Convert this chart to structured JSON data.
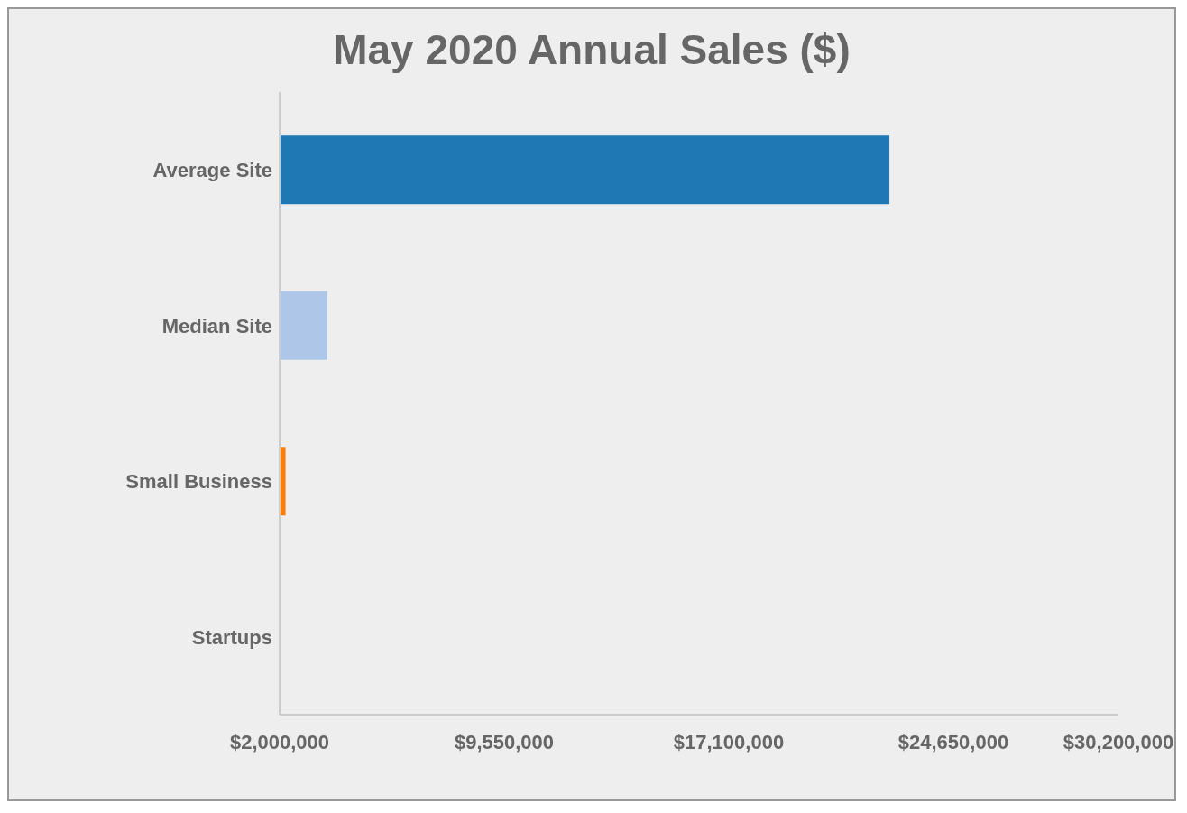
{
  "chart_data": {
    "type": "bar",
    "orientation": "horizontal",
    "title": "May 2020 Annual Sales ($)",
    "categories": [
      "Average Site",
      "Median Site",
      "Small Business",
      "Startups"
    ],
    "values": [
      22500000,
      3600000,
      2200000,
      null
    ],
    "colors": [
      "#1f77b4",
      "#aec7e8",
      "#ff7f0e",
      "#ffbb78"
    ],
    "xlim": [
      2000000,
      30200000
    ],
    "xticks": [
      {
        "value": 2000000,
        "label": "$2,000,000"
      },
      {
        "value": 9550000,
        "label": "$9,550,000"
      },
      {
        "value": 17100000,
        "label": "$17,100,000"
      },
      {
        "value": 24650000,
        "label": "$24,650,000"
      },
      {
        "value": 30200000,
        "label": "$30,200,000"
      }
    ],
    "grid": false
  }
}
